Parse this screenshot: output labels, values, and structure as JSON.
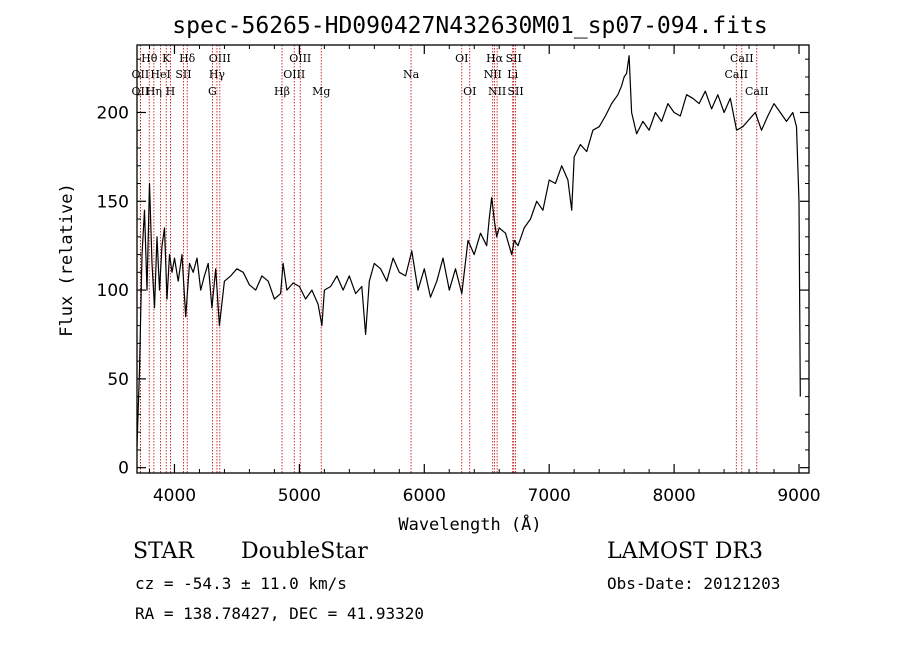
{
  "chart_data": {
    "type": "line",
    "title": "spec-56265-HD090427N432630M01_sp07-094.fits",
    "xlabel": "Wavelength (Å)",
    "ylabel": "Flux (relative)",
    "xlim": [
      3700,
      9080
    ],
    "ylim": [
      -3,
      238
    ],
    "xticks": [
      4000,
      5000,
      6000,
      7000,
      8000,
      9000
    ],
    "yticks": [
      0,
      50,
      100,
      150,
      200
    ],
    "grid": false,
    "series": [
      {
        "x": [
          3700,
          3720,
          3740,
          3760,
          3780,
          3800,
          3820,
          3840,
          3860,
          3880,
          3900,
          3920,
          3940,
          3960,
          3980,
          4000,
          4030,
          4060,
          4090,
          4120,
          4150,
          4180,
          4210,
          4240,
          4270,
          4300,
          4330,
          4360,
          4400,
          4450,
          4500,
          4550,
          4600,
          4650,
          4700,
          4750,
          4800,
          4850,
          4870,
          4900,
          4950,
          5000,
          5050,
          5100,
          5150,
          5180,
          5200,
          5250,
          5300,
          5350,
          5400,
          5450,
          5500,
          5530,
          5560,
          5600,
          5650,
          5700,
          5750,
          5800,
          5850,
          5900,
          5950,
          6000,
          6050,
          6100,
          6150,
          6200,
          6250,
          6300,
          6350,
          6400,
          6450,
          6500,
          6520,
          6540,
          6563,
          6580,
          6600,
          6650,
          6700,
          6720,
          6750,
          6800,
          6850,
          6900,
          6950,
          7000,
          7050,
          7100,
          7150,
          7180,
          7200,
          7250,
          7300,
          7350,
          7400,
          7450,
          7500,
          7550,
          7580,
          7600,
          7620,
          7640,
          7660,
          7700,
          7750,
          7800,
          7850,
          7900,
          7950,
          8000,
          8050,
          8100,
          8150,
          8200,
          8250,
          8300,
          8350,
          8400,
          8450,
          8500,
          8550,
          8600,
          8650,
          8700,
          8750,
          8800,
          8850,
          8900,
          8950,
          8980,
          9000,
          9010
        ],
        "values": [
          12,
          55,
          120,
          145,
          100,
          160,
          115,
          90,
          130,
          100,
          125,
          135,
          95,
          120,
          110,
          118,
          105,
          120,
          85,
          115,
          110,
          118,
          100,
          108,
          115,
          90,
          112,
          80,
          105,
          108,
          112,
          110,
          103,
          100,
          108,
          105,
          95,
          98,
          115,
          100,
          104,
          102,
          95,
          100,
          92,
          80,
          100,
          102,
          108,
          100,
          108,
          98,
          102,
          75,
          105,
          115,
          112,
          105,
          118,
          110,
          108,
          122,
          100,
          112,
          96,
          105,
          118,
          100,
          112,
          98,
          128,
          120,
          132,
          125,
          140,
          152,
          138,
          130,
          135,
          132,
          120,
          128,
          125,
          135,
          140,
          150,
          145,
          162,
          160,
          170,
          162,
          145,
          175,
          182,
          178,
          190,
          192,
          198,
          205,
          210,
          215,
          220,
          222,
          232,
          200,
          188,
          195,
          190,
          200,
          195,
          205,
          200,
          198,
          210,
          208,
          205,
          212,
          202,
          210,
          200,
          208,
          190,
          192,
          196,
          200,
          190,
          198,
          205,
          200,
          195,
          200,
          192,
          150,
          40
        ]
      }
    ],
    "lines": [
      {
        "name": "OII",
        "x": 3727,
        "row": 3
      },
      {
        "name": "OII",
        "x": 3727,
        "row": 2
      },
      {
        "name": "Hθ",
        "x": 3798,
        "row": 1
      },
      {
        "name": "Hη",
        "x": 3835,
        "row": 3
      },
      {
        "name": "HeI",
        "x": 3889,
        "row": 2
      },
      {
        "name": "K",
        "x": 3934,
        "row": 1
      },
      {
        "name": "H",
        "x": 3968,
        "row": 3
      },
      {
        "name": "SII",
        "x": 4072,
        "row": 2
      },
      {
        "name": "Hδ",
        "x": 4102,
        "row": 1
      },
      {
        "name": "G",
        "x": 4304,
        "row": 3
      },
      {
        "name": "Hγ",
        "x": 4340,
        "row": 2
      },
      {
        "name": "OIII",
        "x": 4363,
        "row": 1
      },
      {
        "name": "Hβ",
        "x": 4861,
        "row": 3
      },
      {
        "name": "OIII",
        "x": 4959,
        "row": 2
      },
      {
        "name": "OIII",
        "x": 5007,
        "row": 1
      },
      {
        "name": "Mg",
        "x": 5175,
        "row": 3
      },
      {
        "name": "Na",
        "x": 5894,
        "row": 2
      },
      {
        "name": "OI",
        "x": 6300,
        "row": 1
      },
      {
        "name": "OI",
        "x": 6364,
        "row": 3
      },
      {
        "name": "NII",
        "x": 6548,
        "row": 2
      },
      {
        "name": "Hα",
        "x": 6563,
        "row": 1
      },
      {
        "name": "NII",
        "x": 6583,
        "row": 3
      },
      {
        "name": "Li",
        "x": 6708,
        "row": 2
      },
      {
        "name": "SII",
        "x": 6716,
        "row": 1
      },
      {
        "name": "SII",
        "x": 6731,
        "row": 3
      },
      {
        "name": "CaII",
        "x": 8498,
        "row": 2
      },
      {
        "name": "CaII",
        "x": 8542,
        "row": 1
      },
      {
        "name": "CaII",
        "x": 8662,
        "row": 3
      }
    ]
  },
  "info": {
    "object_class": "STAR",
    "subclass": "DoubleStar",
    "survey": "LAMOST DR3",
    "redshift": "cz = -54.3 ± 11.0 km/s",
    "obs_date": "Obs-Date: 20121203",
    "coords": "RA = 138.78427, DEC =  41.93320"
  },
  "colors": {
    "spectrum": "#000000",
    "line_marker": "#c00000",
    "axis": "#000000",
    "background": "#ffffff"
  }
}
